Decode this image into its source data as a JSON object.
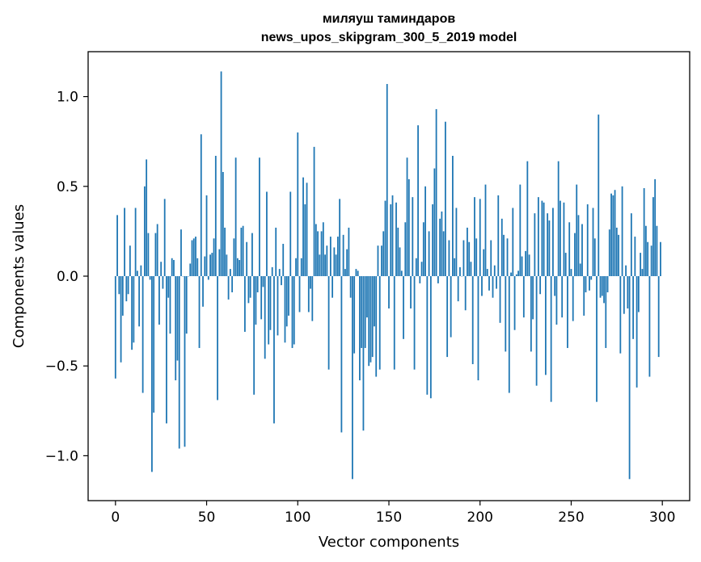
{
  "chart_data": {
    "type": "bar",
    "title_line1": "миляуш таминдаров",
    "title_line2": "news_upos_skipgram_300_5_2019 model",
    "xlabel": "Vector components",
    "ylabel": "Components values",
    "xlim": [
      -15,
      315
    ],
    "ylim": [
      -1.25,
      1.25
    ],
    "xticks": [
      0,
      50,
      100,
      150,
      200,
      250,
      300
    ],
    "xtick_labels": [
      "0",
      "50",
      "100",
      "150",
      "200",
      "250",
      "300"
    ],
    "yticks": [
      -1.0,
      -0.5,
      0.0,
      0.5,
      1.0
    ],
    "ytick_labels": [
      "−1.0",
      "−0.5",
      "0.0",
      "0.5",
      "1.0"
    ],
    "bar_color": "#1f77b4",
    "values": [
      -0.57,
      0.34,
      -0.1,
      -0.48,
      -0.22,
      0.38,
      -0.14,
      -0.1,
      0.17,
      -0.41,
      -0.37,
      0.38,
      0.03,
      -0.28,
      0.06,
      -0.65,
      0.5,
      0.65,
      0.24,
      -0.02,
      -1.09,
      -0.76,
      0.24,
      0.29,
      -0.27,
      0.08,
      -0.07,
      0.43,
      -0.82,
      -0.12,
      -0.32,
      0.1,
      0.09,
      -0.58,
      -0.47,
      -0.96,
      0.26,
      0.0,
      -0.95,
      -0.32,
      0.0,
      0.07,
      0.2,
      0.21,
      0.22,
      0.1,
      -0.4,
      0.79,
      -0.17,
      0.11,
      0.45,
      -0.02,
      0.12,
      0.13,
      0.21,
      0.67,
      -0.69,
      0.15,
      1.14,
      0.58,
      0.27,
      0.12,
      -0.13,
      0.04,
      -0.09,
      0.21,
      0.66,
      0.1,
      0.09,
      0.27,
      0.28,
      -0.31,
      0.19,
      -0.15,
      -0.12,
      0.24,
      -0.66,
      -0.27,
      -0.09,
      0.66,
      -0.24,
      -0.06,
      -0.46,
      0.47,
      -0.38,
      -0.3,
      0.05,
      -0.82,
      0.27,
      -0.33,
      0.04,
      -0.05,
      0.18,
      -0.37,
      -0.28,
      -0.22,
      0.47,
      -0.4,
      -0.38,
      0.1,
      0.8,
      -0.2,
      0.1,
      0.55,
      0.4,
      0.52,
      -0.2,
      -0.07,
      -0.25,
      0.72,
      0.29,
      0.25,
      0.12,
      0.25,
      0.3,
      0.12,
      0.17,
      -0.52,
      0.22,
      -0.12,
      0.16,
      0.12,
      0.22,
      0.43,
      -0.87,
      0.23,
      0.04,
      0.15,
      0.27,
      -0.12,
      -1.13,
      -0.43,
      0.04,
      0.03,
      -0.58,
      -0.4,
      -0.86,
      -0.4,
      -0.23,
      -0.5,
      -0.48,
      -0.45,
      -0.28,
      -0.56,
      0.17,
      -0.52,
      0.17,
      0.25,
      0.42,
      1.07,
      -0.18,
      0.4,
      0.45,
      -0.52,
      0.41,
      0.27,
      0.16,
      0.03,
      -0.35,
      0.3,
      0.66,
      0.54,
      -0.18,
      0.44,
      -0.52,
      0.1,
      0.84,
      -0.04,
      0.08,
      0.3,
      0.5,
      -0.66,
      0.25,
      -0.68,
      0.4,
      0.6,
      0.93,
      -0.04,
      0.32,
      0.36,
      0.25,
      0.86,
      -0.45,
      0.2,
      -0.34,
      0.67,
      0.1,
      0.38,
      -0.14,
      0.05,
      0.0,
      0.2,
      -0.19,
      0.27,
      0.19,
      0.08,
      -0.49,
      0.44,
      0.21,
      -0.58,
      0.43,
      -0.11,
      0.15,
      0.51,
      0.04,
      -0.08,
      0.2,
      -0.12,
      0.06,
      -0.07,
      0.45,
      -0.26,
      0.32,
      0.23,
      -0.42,
      0.21,
      -0.65,
      0.02,
      0.38,
      -0.3,
      0.01,
      0.03,
      0.51,
      0.11,
      -0.23,
      0.14,
      0.64,
      0.12,
      -0.42,
      -0.24,
      0.35,
      -0.61,
      0.44,
      -0.1,
      0.42,
      0.41,
      -0.55,
      0.35,
      0.31,
      -0.7,
      0.38,
      -0.11,
      -0.27,
      0.64,
      0.42,
      -0.23,
      0.41,
      0.13,
      -0.4,
      0.3,
      0.04,
      -0.25,
      0.24,
      0.51,
      0.34,
      0.07,
      0.29,
      -0.22,
      -0.09,
      0.4,
      -0.08,
      -0.02,
      0.38,
      0.21,
      -0.7,
      0.9,
      -0.12,
      -0.11,
      -0.15,
      -0.4,
      -0.09,
      0.26,
      0.46,
      0.45,
      0.48,
      0.27,
      0.23,
      -0.43,
      0.5,
      -0.21,
      0.06,
      -0.18,
      -1.13,
      0.35,
      -0.35,
      0.22,
      -0.62,
      -0.2,
      0.13,
      0.04,
      0.49,
      0.28,
      0.19,
      -0.56,
      0.17,
      0.44,
      0.54,
      0.28,
      -0.45,
      0.19
    ]
  }
}
